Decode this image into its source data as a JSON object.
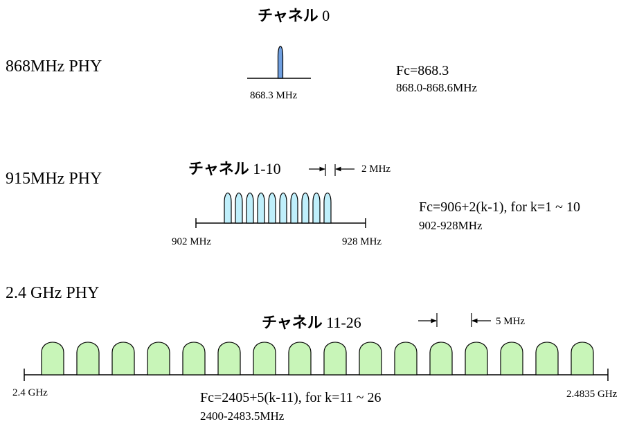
{
  "sections": [
    {
      "phy_label": "868MHz PHY",
      "channel_word": "チャネル",
      "channel_range": "0",
      "fc_formula": "Fc=868.3",
      "freq_range": "868.0-868.6MHz",
      "center_label": "868.3 MHz",
      "channel_count": 1,
      "fill_color": "#6f9fe0"
    },
    {
      "phy_label": "915MHz PHY",
      "channel_word": "チャネル",
      "channel_range": "1-10",
      "spacing_label": "2 MHz",
      "fc_formula": "Fc=906+2(k-1), for k=1 ~ 10",
      "freq_range": "902-928MHz",
      "start_label": "902 MHz",
      "end_label": "928 MHz",
      "channel_count": 10,
      "fill_color": "#bfeffb"
    },
    {
      "phy_label": "2.4 GHz PHY",
      "channel_word": "チャネル",
      "channel_range": "11-26",
      "spacing_label": "5 MHz",
      "fc_formula": "Fc=2405+5(k-11), for k=11 ~ 26",
      "freq_range": "2400-2483.5MHz",
      "start_label": "2.4 GHz",
      "end_label": "2.4835 GHz",
      "channel_count": 16,
      "fill_color": "#c8f5b8"
    }
  ]
}
